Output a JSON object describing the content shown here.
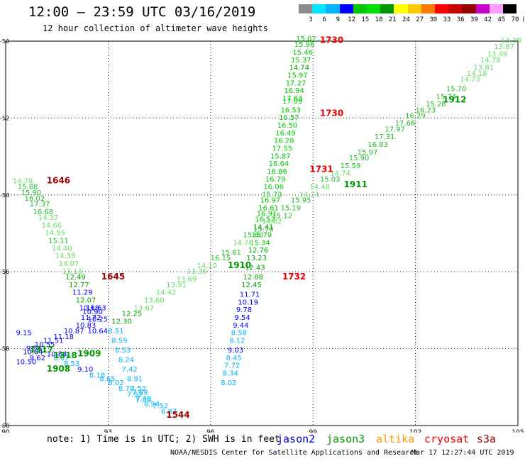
{
  "header": {
    "title": "12:00 – 23:59 UTC 03/16/2019",
    "subtitle": "12 hour collection of altimeter wave heights"
  },
  "colorbar": {
    "labels": [
      "3",
      "6",
      "9",
      "12",
      "15",
      "18",
      "21",
      "24",
      "27",
      "30",
      "33",
      "36",
      "39",
      "42",
      "45",
      "70",
      "(ft)"
    ],
    "colors": [
      "#8c8c8c",
      "#00e5ff",
      "#00b4ff",
      "#0000ff",
      "#00c800",
      "#00e000",
      "#009600",
      "#ffff00",
      "#ffc800",
      "#ff7800",
      "#ff0000",
      "#c80000",
      "#960000",
      "#c800c8",
      "#ff9bff",
      "#000000"
    ]
  },
  "footer": {
    "note": "note: 1) Time is in UTC; 2) SWH is in feet",
    "credit": "NOAA/NESDIS Center for Satellite Applications and Research",
    "timestamp": "Mar 17 12:27:44 UTC 2019"
  },
  "legend": [
    {
      "name": "jason2",
      "color": "#0000cc"
    },
    {
      "name": "jason3",
      "color": "#009900"
    },
    {
      "name": "altika",
      "color": "#ff9900"
    },
    {
      "name": "cryosat",
      "color": "#ee0000"
    },
    {
      "name": "s3a",
      "color": "#990000"
    }
  ],
  "chart_data": {
    "type": "scatter",
    "title": "12:00 – 23:59 UTC 03/16/2019",
    "xlim": [
      90,
      105
    ],
    "ylim": [
      -60,
      -50
    ],
    "xticks": [
      "90",
      "93",
      "96",
      "99",
      "102",
      "105"
    ],
    "yticks": [
      "-50",
      "-52",
      "-54",
      "-56",
      "-58",
      "-60"
    ],
    "grid": true,
    "time_labels": [
      {
        "text": "1730",
        "x": 99.2,
        "y": -50.05,
        "color": "#ee0000"
      },
      {
        "text": "1730",
        "x": 99.2,
        "y": -51.95,
        "color": "#ee0000"
      },
      {
        "text": "1731",
        "x": 98.9,
        "y": -53.4,
        "color": "#ee0000"
      },
      {
        "text": "1732",
        "x": 98.1,
        "y": -56.2,
        "color": "#ee0000"
      },
      {
        "text": "1646",
        "x": 91.2,
        "y": -53.7,
        "color": "#990000"
      },
      {
        "text": "1645",
        "x": 92.8,
        "y": -56.2,
        "color": "#990000"
      },
      {
        "text": "1544",
        "x": 94.7,
        "y": -59.8,
        "color": "#990000"
      },
      {
        "text": "1912",
        "x": 102.8,
        "y": -51.6,
        "color": "#009900"
      },
      {
        "text": "1911",
        "x": 99.9,
        "y": -53.8,
        "color": "#009900"
      },
      {
        "text": "1910",
        "x": 96.5,
        "y": -55.9,
        "color": "#009900"
      },
      {
        "text": "1909",
        "x": 92.1,
        "y": -58.2,
        "color": "#009900"
      },
      {
        "text": "1908",
        "x": 91.2,
        "y": -58.6,
        "color": "#009900"
      },
      {
        "text": "1317",
        "x": 90.7,
        "y": -58.1,
        "color": "#009900"
      },
      {
        "text": "1318",
        "x": 91.4,
        "y": -58.25,
        "color": "#009900"
      }
    ],
    "series": [
      {
        "name": "track-a",
        "values": [
          {
            "x": 98.5,
            "y": -50.0,
            "v": "15.02"
          },
          {
            "x": 98.45,
            "y": -50.15,
            "v": "15.96"
          },
          {
            "x": 98.4,
            "y": -50.35,
            "v": "15.46"
          },
          {
            "x": 98.35,
            "y": -50.55,
            "v": "15.37"
          },
          {
            "x": 98.3,
            "y": -50.75,
            "v": "14.74"
          },
          {
            "x": 98.25,
            "y": -50.95,
            "v": "15.97"
          },
          {
            "x": 98.2,
            "y": -51.15,
            "v": "17.27"
          },
          {
            "x": 98.15,
            "y": -51.35,
            "v": "16.94"
          },
          {
            "x": 98.1,
            "y": -51.55,
            "v": "17.63"
          },
          {
            "x": 98.1,
            "y": -51.62,
            "v": "17.09"
          },
          {
            "x": 98.05,
            "y": -51.85,
            "v": "16.53"
          },
          {
            "x": 98.0,
            "y": -52.05,
            "v": "16.57"
          },
          {
            "x": 97.95,
            "y": -52.25,
            "v": "16.50"
          },
          {
            "x": 97.9,
            "y": -52.45,
            "v": "16.49"
          },
          {
            "x": 97.85,
            "y": -52.65,
            "v": "16.28"
          },
          {
            "x": 97.8,
            "y": -52.85,
            "v": "17.55"
          },
          {
            "x": 97.75,
            "y": -53.05,
            "v": "15.87"
          },
          {
            "x": 97.7,
            "y": -53.25,
            "v": "16.64"
          },
          {
            "x": 97.65,
            "y": -53.45,
            "v": "16.86"
          },
          {
            "x": 97.6,
            "y": -53.65,
            "v": "16.79"
          },
          {
            "x": 97.55,
            "y": -53.85,
            "v": "16.06"
          },
          {
            "x": 97.5,
            "y": -54.05,
            "v": "15.73"
          },
          {
            "x": 97.45,
            "y": -54.2,
            "v": "16.97"
          },
          {
            "x": 97.4,
            "y": -54.4,
            "v": "16.61"
          },
          {
            "x": 97.35,
            "y": -54.55,
            "v": "16.91"
          },
          {
            "x": 97.3,
            "y": -54.7,
            "v": "16.52"
          },
          {
            "x": 97.25,
            "y": -54.9,
            "v": "14.41"
          },
          {
            "x": 97.2,
            "y": -55.1,
            "v": "15.79"
          },
          {
            "x": 97.15,
            "y": -55.3,
            "v": "15.34"
          },
          {
            "x": 97.1,
            "y": -55.5,
            "v": "12.76"
          },
          {
            "x": 97.05,
            "y": -55.7,
            "v": "13.23"
          },
          {
            "x": 97.0,
            "y": -55.95,
            "v": "12.43"
          },
          {
            "x": 96.95,
            "y": -56.2,
            "v": "12.88"
          },
          {
            "x": 96.9,
            "y": -56.4,
            "v": "12.45"
          },
          {
            "x": 96.85,
            "y": -56.65,
            "v": "11.71"
          },
          {
            "x": 96.8,
            "y": -56.85,
            "v": "10.19"
          },
          {
            "x": 96.75,
            "y": -57.05,
            "v": "9.78"
          },
          {
            "x": 96.7,
            "y": -57.25,
            "v": "9.54"
          },
          {
            "x": 96.65,
            "y": -57.45,
            "v": "9.44"
          },
          {
            "x": 96.6,
            "y": -57.65,
            "v": "8.58"
          },
          {
            "x": 96.55,
            "y": -57.85,
            "v": "8.12"
          },
          {
            "x": 96.5,
            "y": -58.1,
            "v": "9.03"
          },
          {
            "x": 96.45,
            "y": -58.3,
            "v": "8.45"
          },
          {
            "x": 96.4,
            "y": -58.5,
            "v": "7.72"
          },
          {
            "x": 96.35,
            "y": -58.7,
            "v": "8.34"
          },
          {
            "x": 96.3,
            "y": -58.95,
            "v": "8.02"
          }
        ]
      },
      {
        "name": "track-b",
        "values": [
          {
            "x": 104.5,
            "y": -50.05,
            "v": "13.39"
          },
          {
            "x": 104.3,
            "y": -50.2,
            "v": "13.87"
          },
          {
            "x": 104.1,
            "y": -50.4,
            "v": "13.49"
          },
          {
            "x": 103.9,
            "y": -50.55,
            "v": "14.78"
          },
          {
            "x": 103.7,
            "y": -50.75,
            "v": "13.81"
          },
          {
            "x": 103.5,
            "y": -50.9,
            "v": "14.18"
          },
          {
            "x": 103.3,
            "y": -51.05,
            "v": "14.73"
          },
          {
            "x": 102.9,
            "y": -51.3,
            "v": "15.70"
          },
          {
            "x": 102.6,
            "y": -51.5,
            "v": "15.74"
          },
          {
            "x": 102.3,
            "y": -51.7,
            "v": "15.28"
          },
          {
            "x": 102.0,
            "y": -51.85,
            "v": "16.23"
          },
          {
            "x": 101.7,
            "y": -52.0,
            "v": "16.29"
          },
          {
            "x": 101.4,
            "y": -52.2,
            "v": "17.66"
          },
          {
            "x": 101.1,
            "y": -52.35,
            "v": "17.97"
          },
          {
            "x": 100.8,
            "y": -52.55,
            "v": "17.31"
          },
          {
            "x": 100.6,
            "y": -52.75,
            "v": "16.83"
          },
          {
            "x": 100.3,
            "y": -52.95,
            "v": "15.97"
          },
          {
            "x": 100.05,
            "y": -53.1,
            "v": "15.90"
          },
          {
            "x": 99.8,
            "y": -53.3,
            "v": "15.59"
          },
          {
            "x": 99.5,
            "y": -53.5,
            "v": "14.74"
          },
          {
            "x": 99.2,
            "y": -53.65,
            "v": "15.03"
          },
          {
            "x": 98.9,
            "y": -53.85,
            "v": "14.48"
          },
          {
            "x": 98.6,
            "y": -54.05,
            "v": "14.21"
          },
          {
            "x": 98.35,
            "y": -54.2,
            "v": "15.95"
          },
          {
            "x": 98.05,
            "y": -54.4,
            "v": "15.19"
          },
          {
            "x": 97.8,
            "y": -54.6,
            "v": "15.12"
          },
          {
            "x": 97.5,
            "y": -54.75,
            "v": "14.82"
          },
          {
            "x": 97.25,
            "y": -54.95,
            "v": "15.70"
          },
          {
            "x": 96.95,
            "y": -55.1,
            "v": "15.60"
          },
          {
            "x": 96.65,
            "y": -55.3,
            "v": "14.76"
          },
          {
            "x": 96.3,
            "y": -55.55,
            "v": "15.81"
          },
          {
            "x": 96.0,
            "y": -55.7,
            "v": "16.15"
          },
          {
            "x": 95.6,
            "y": -55.9,
            "v": "14.10"
          },
          {
            "x": 95.3,
            "y": -56.05,
            "v": "13.30"
          },
          {
            "x": 95.0,
            "y": -56.25,
            "v": "13.69"
          },
          {
            "x": 94.7,
            "y": -56.4,
            "v": "13.91"
          },
          {
            "x": 94.4,
            "y": -56.6,
            "v": "14.42"
          },
          {
            "x": 94.05,
            "y": -56.8,
            "v": "13.60"
          },
          {
            "x": 93.75,
            "y": -57.0,
            "v": "13.67"
          },
          {
            "x": 93.4,
            "y": -57.15,
            "v": "12.25"
          },
          {
            "x": 93.1,
            "y": -57.35,
            "v": "12.30"
          }
        ]
      },
      {
        "name": "track-c",
        "values": [
          {
            "x": 90.2,
            "y": -53.7,
            "v": "14.78"
          },
          {
            "x": 90.35,
            "y": -53.85,
            "v": "15.88"
          },
          {
            "x": 90.45,
            "y": -54.0,
            "v": "15.90"
          },
          {
            "x": 90.55,
            "y": -54.15,
            "v": "16.02"
          },
          {
            "x": 90.7,
            "y": -54.3,
            "v": "17.37"
          },
          {
            "x": 90.8,
            "y": -54.5,
            "v": "16.68"
          },
          {
            "x": 90.95,
            "y": -54.65,
            "v": "14.37"
          },
          {
            "x": 91.05,
            "y": -54.85,
            "v": "14.66"
          },
          {
            "x": 91.15,
            "y": -55.05,
            "v": "14.55"
          },
          {
            "x": 91.25,
            "y": -55.25,
            "v": "15.11"
          },
          {
            "x": 91.35,
            "y": -55.45,
            "v": "14.40"
          },
          {
            "x": 91.45,
            "y": -55.65,
            "v": "14.39"
          },
          {
            "x": 91.55,
            "y": -55.85,
            "v": "14.07"
          },
          {
            "x": 91.65,
            "y": -56.05,
            "v": "13.13"
          },
          {
            "x": 91.75,
            "y": -56.2,
            "v": "12.49"
          },
          {
            "x": 91.85,
            "y": -56.4,
            "v": "12.77"
          },
          {
            "x": 91.95,
            "y": -56.6,
            "v": "11.29"
          },
          {
            "x": 92.05,
            "y": -56.8,
            "v": "12.07"
          },
          {
            "x": 92.15,
            "y": -57.0,
            "v": "10.68"
          },
          {
            "x": 92.25,
            "y": -57.1,
            "v": "10.90"
          },
          {
            "x": 92.35,
            "y": -57.0,
            "v": "11.63"
          },
          {
            "x": 92.2,
            "y": -57.25,
            "v": "11.72"
          },
          {
            "x": 92.4,
            "y": -57.3,
            "v": "10.25"
          },
          {
            "x": 92.05,
            "y": -57.45,
            "v": "10.83"
          },
          {
            "x": 91.7,
            "y": -57.6,
            "v": "10.87"
          },
          {
            "x": 92.4,
            "y": -57.6,
            "v": "10.64"
          },
          {
            "x": 91.4,
            "y": -57.75,
            "v": "11.18"
          },
          {
            "x": 91.1,
            "y": -57.85,
            "v": "11.51"
          },
          {
            "x": 90.85,
            "y": -57.95,
            "v": "10.55"
          },
          {
            "x": 90.6,
            "y": -58.05,
            "v": "9.56"
          },
          {
            "x": 90.3,
            "y": -57.65,
            "v": "9.15"
          },
          {
            "x": 90.5,
            "y": -58.15,
            "v": "10.04"
          },
          {
            "x": 90.7,
            "y": -58.3,
            "v": "9.62"
          },
          {
            "x": 90.3,
            "y": -58.4,
            "v": "10.50"
          },
          {
            "x": 91.2,
            "y": -58.2,
            "v": "10.84"
          },
          {
            "x": 91.4,
            "y": -58.3,
            "v": "8.67"
          },
          {
            "x": 91.7,
            "y": -58.45,
            "v": "8.53"
          },
          {
            "x": 92.1,
            "y": -58.6,
            "v": "9.10"
          },
          {
            "x": 92.45,
            "y": -58.75,
            "v": "8.18"
          },
          {
            "x": 92.75,
            "y": -58.85,
            "v": "8.65"
          },
          {
            "x": 93.0,
            "y": -58.95,
            "v": "8.02"
          },
          {
            "x": 93.3,
            "y": -59.1,
            "v": "8.70"
          },
          {
            "x": 93.55,
            "y": -59.25,
            "v": "7.52"
          },
          {
            "x": 93.8,
            "y": -59.35,
            "v": "7.49"
          },
          {
            "x": 94.05,
            "y": -59.5,
            "v": "6.94"
          },
          {
            "x": 94.3,
            "y": -59.55,
            "v": "7.52"
          },
          {
            "x": 94.55,
            "y": -59.7,
            "v": "6.87"
          }
        ]
      },
      {
        "name": "track-d",
        "values": [
          {
            "x": 93.0,
            "y": -57.6,
            "v": "8.51"
          },
          {
            "x": 93.1,
            "y": -57.85,
            "v": "8.59"
          },
          {
            "x": 93.2,
            "y": -58.1,
            "v": "8.53"
          },
          {
            "x": 93.3,
            "y": -58.35,
            "v": "8.24"
          },
          {
            "x": 93.4,
            "y": -58.6,
            "v": "7.42"
          },
          {
            "x": 93.55,
            "y": -58.85,
            "v": "8.91"
          },
          {
            "x": 93.65,
            "y": -59.1,
            "v": "7.52"
          },
          {
            "x": 93.7,
            "y": -59.2,
            "v": "7.69"
          },
          {
            "x": 93.8,
            "y": -59.4,
            "v": "7.49"
          }
        ]
      }
    ]
  }
}
